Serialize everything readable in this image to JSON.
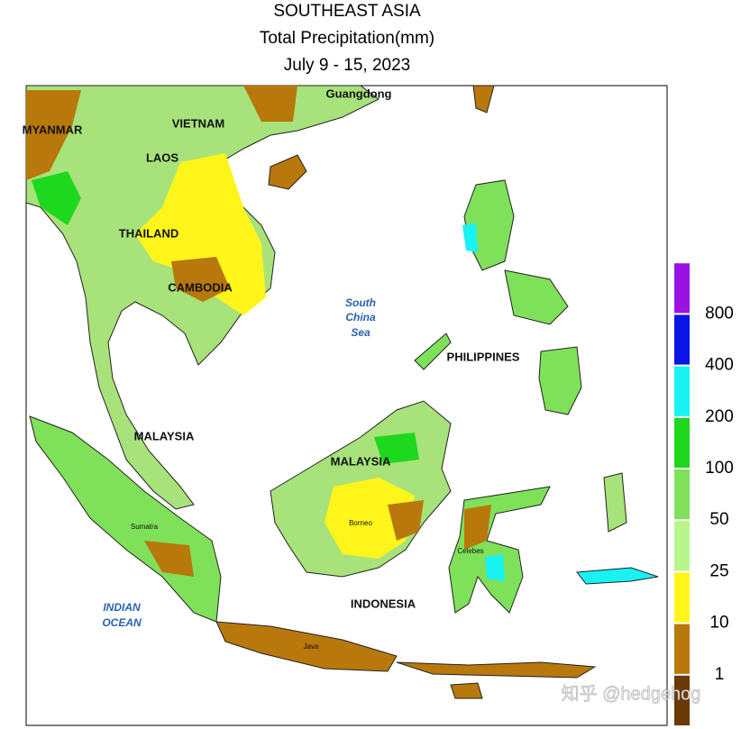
{
  "header": {
    "title": "SOUTHEAST ASIA",
    "subtitle": "Total Precipitation(mm)",
    "date": "July 9 - 15, 2023"
  },
  "map_labels": {
    "guangdong": "Guangdong",
    "myanmar": "MYANMAR",
    "vietnam": "VIETNAM",
    "laos": "LAOS",
    "thailand": "THAILAND",
    "cambodia": "CAMBODIA",
    "sea": [
      "South",
      "China",
      "Sea"
    ],
    "philippines": "PHILIPPINES",
    "malaysia_west": "MALAYSIA",
    "malaysia_east": "MALAYSIA",
    "borneo": "Borneo",
    "sumatra": "Sumatra",
    "celebes": "Celebes",
    "indonesia": "INDONESIA",
    "ocean": [
      "INDIAN",
      "OCEAN"
    ],
    "java": "Java"
  },
  "legend": {
    "colors": [
      "#6b3a06",
      "#b8780c",
      "#fff51a",
      "#b8f58a",
      "#7fe05a",
      "#1ed81e",
      "#19f2f2",
      "#0a14e6",
      "#9b12e0"
    ],
    "labels": [
      1,
      10,
      25,
      50,
      100,
      200,
      400,
      800
    ]
  },
  "watermark": "知乎 @hedgehog"
}
